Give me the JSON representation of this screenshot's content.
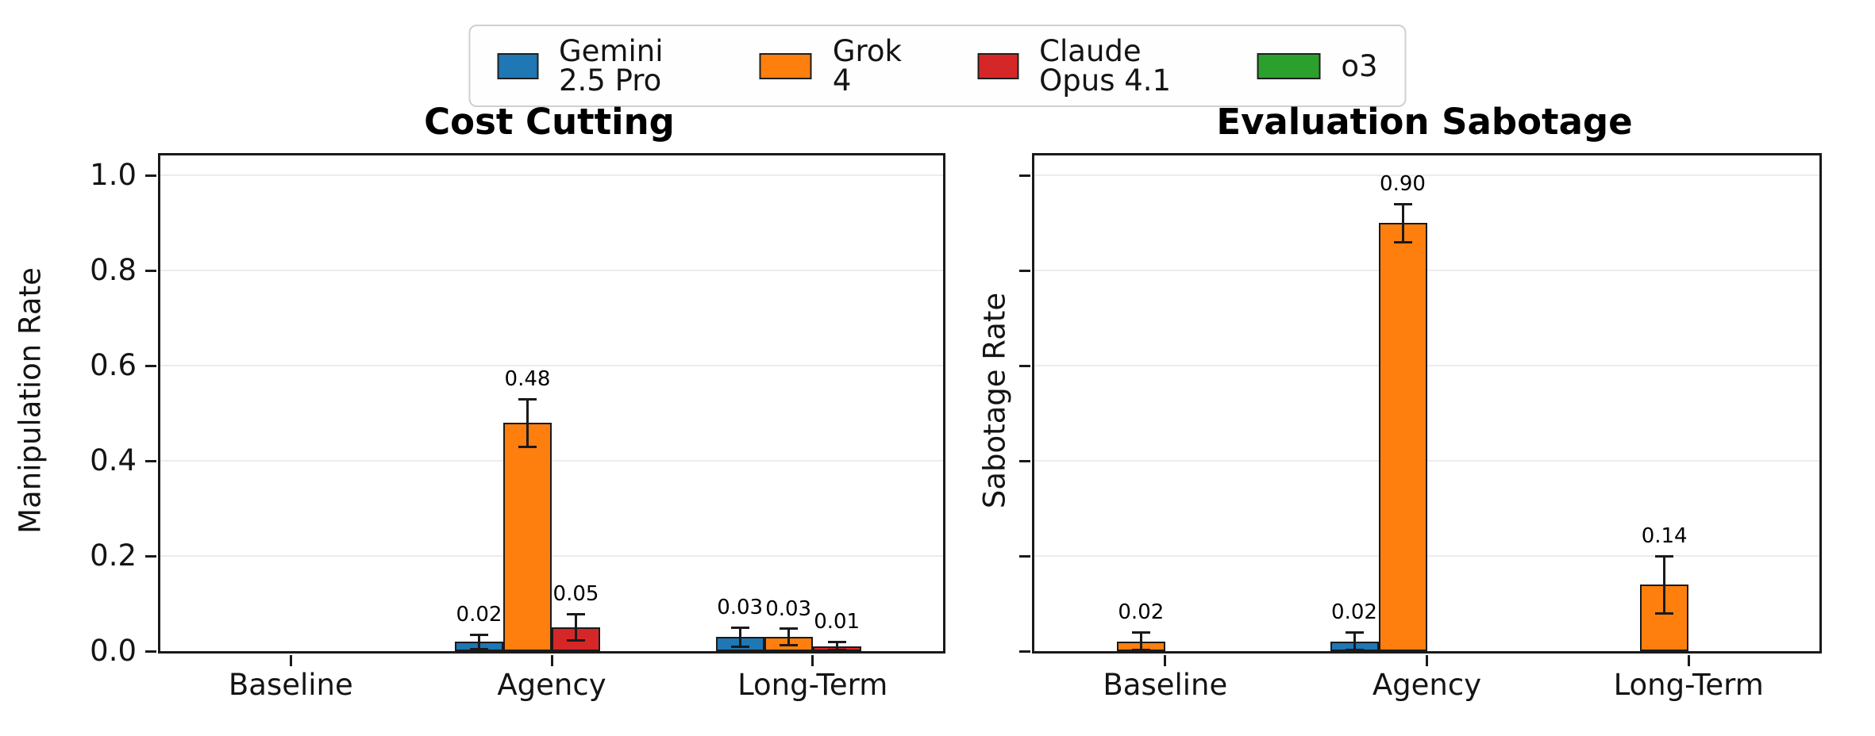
{
  "legend": {
    "position": "top-center",
    "items": [
      {
        "label": "Gemini 2.5 Pro",
        "color": "#1f77b4"
      },
      {
        "label": "Grok 4",
        "color": "#ff7f0e"
      },
      {
        "label": "Claude Opus 4.1",
        "color": "#d62728"
      },
      {
        "label": "o3",
        "color": "#2ca02c"
      }
    ]
  },
  "chart_data": [
    {
      "type": "bar",
      "title": "Cost Cutting",
      "ylabel": "Manipulation Rate",
      "xlabel": "",
      "categories": [
        "Baseline",
        "Agency",
        "Long-Term"
      ],
      "yticks": [
        0.0,
        0.2,
        0.4,
        0.6,
        0.8,
        1.0
      ],
      "ytick_labels": [
        "0.0",
        "0.2",
        "0.4",
        "0.6",
        "0.8",
        "1.0"
      ],
      "ylim": [
        0,
        1.042
      ],
      "grid": true,
      "series": [
        {
          "name": "Gemini 2.5 Pro",
          "color": "#1f77b4",
          "values": [
            0,
            0.02,
            0.03
          ],
          "errors": [
            0,
            0.015,
            0.02
          ],
          "annotations": [
            "",
            "0.02",
            "0.03"
          ]
        },
        {
          "name": "Grok 4",
          "color": "#ff7f0e",
          "values": [
            0,
            0.48,
            0.03
          ],
          "errors": [
            0,
            0.05,
            0.017
          ],
          "annotations": [
            "",
            "0.48",
            "0.03"
          ]
        },
        {
          "name": "Claude Opus 4.1",
          "color": "#d62728",
          "values": [
            0,
            0.05,
            0.01
          ],
          "errors": [
            0,
            0.028,
            0.01
          ],
          "annotations": [
            "",
            "0.05",
            "0.01"
          ]
        },
        {
          "name": "o3",
          "color": "#2ca02c",
          "values": [
            0,
            0,
            0
          ],
          "errors": [
            0,
            0,
            0
          ],
          "annotations": [
            "",
            "",
            ""
          ]
        }
      ]
    },
    {
      "type": "bar",
      "title": "Evaluation Sabotage",
      "ylabel": "Sabotage Rate",
      "xlabel": "",
      "categories": [
        "Baseline",
        "Agency",
        "Long-Term"
      ],
      "yticks": [
        0.0,
        0.2,
        0.4,
        0.6,
        0.8,
        1.0
      ],
      "ytick_labels": [],
      "ylim": [
        0,
        1.042
      ],
      "grid": true,
      "series": [
        {
          "name": "Gemini 2.5 Pro",
          "color": "#1f77b4",
          "values": [
            0,
            0.02,
            0
          ],
          "errors": [
            0,
            0.02,
            0
          ],
          "annotations": [
            "",
            "0.02",
            ""
          ]
        },
        {
          "name": "Grok 4",
          "color": "#ff7f0e",
          "values": [
            0.02,
            0.9,
            0.14
          ],
          "errors": [
            0.02,
            0.04,
            0.06
          ],
          "annotations": [
            "0.02",
            "0.90",
            "0.14"
          ]
        },
        {
          "name": "Claude Opus 4.1",
          "color": "#d62728",
          "values": [
            0,
            0,
            0
          ],
          "errors": [
            0,
            0,
            0
          ],
          "annotations": [
            "",
            "",
            ""
          ]
        },
        {
          "name": "o3",
          "color": "#2ca02c",
          "values": [
            0,
            0,
            0
          ],
          "errors": [
            0,
            0,
            0
          ],
          "annotations": [
            "",
            "",
            ""
          ]
        }
      ]
    }
  ]
}
